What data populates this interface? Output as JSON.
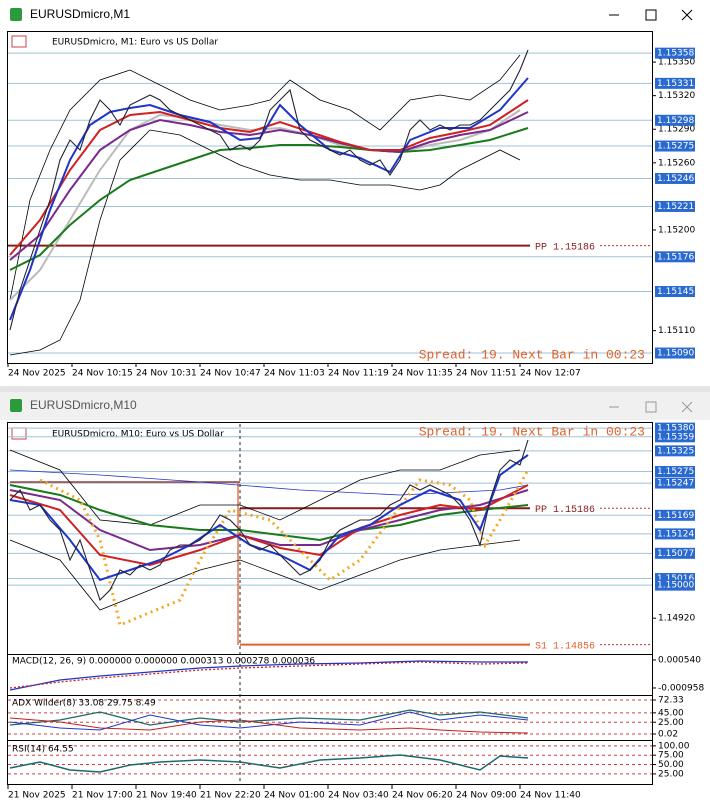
{
  "window1": {
    "title": "EURUSDmicro,M1",
    "chart_label": "EURUSDmicro, M1:  Euro vs US Dollar",
    "spread": "Spread: 19. Next Bar in 00:23",
    "main": {
      "ylim": [
        1.15376,
        1.15082
      ],
      "ticks": [
        {
          "value": 1.1535,
          "label": "1.15350"
        },
        {
          "value": 1.1532,
          "label": "1.15320"
        },
        {
          "value": 1.1529,
          "label": "1.15290"
        },
        {
          "value": 1.1526,
          "label": "1.15260"
        },
        {
          "value": 1.152,
          "label": "1.15200"
        },
        {
          "value": 1.1511,
          "label": "1.15110"
        }
      ],
      "levels": [
        {
          "value": 1.15358,
          "label": "1.15358"
        },
        {
          "value": 1.15331,
          "label": "1.15331"
        },
        {
          "value": 1.15298,
          "label": "1.15298"
        },
        {
          "value": 1.15275,
          "label": "1.15275"
        },
        {
          "value": 1.15246,
          "label": "1.15246"
        },
        {
          "value": 1.15221,
          "label": "1.15221"
        },
        {
          "value": 1.15176,
          "label": "1.15176"
        },
        {
          "value": 1.15145,
          "label": "1.15145"
        },
        {
          "value": 1.1509,
          "label": "1.15090"
        }
      ],
      "pivots": [
        {
          "value": 1.15186,
          "label": "PP 1.15186"
        }
      ]
    },
    "time_labels": [
      "24 Nov 2025",
      "24 Nov 10:15",
      "24 Nov 10:31",
      "24 Nov 10:47",
      "24 Nov 11:03",
      "24 Nov 11:19",
      "24 Nov 11:35",
      "24 Nov 11:51",
      "24 Nov 12:07"
    ]
  },
  "window2": {
    "title": "EURUSDmicro,M10",
    "chart_label": "EURUSDmicro, M10:  Euro vs US Dollar",
    "spread": "Spread: 19. Next Bar in 00:23",
    "main": {
      "ylim": [
        1.1539,
        1.14843
      ],
      "ticks": [
        {
          "value": 1.1492,
          "label": "1.14920"
        }
      ],
      "levels": [
        {
          "value": 1.1538,
          "label": "1.15380"
        },
        {
          "value": 1.15359,
          "label": "1.15359"
        },
        {
          "value": 1.15325,
          "label": "1.15325"
        },
        {
          "value": 1.15275,
          "label": "1.15275"
        },
        {
          "value": 1.15247,
          "label": "1.15247"
        },
        {
          "value": 1.15169,
          "label": "1.15169"
        },
        {
          "value": 1.15124,
          "label": "1.15124"
        },
        {
          "value": 1.15077,
          "label": "1.15077"
        },
        {
          "value": 1.15016,
          "label": "1.15016"
        },
        {
          "value": 1.15,
          "label": "1.15000"
        }
      ],
      "pivots": [
        {
          "value": 1.15186,
          "label": "PP 1.15186"
        },
        {
          "value": 1.14856,
          "label": "S1 1.14856"
        }
      ]
    },
    "macd": {
      "label": "MACD(12, 26, 9) 0.000000 0.000000 0.000313 0.000278 0.000036",
      "ylim": [
        0.00075,
        -0.00128
      ],
      "ticks": [
        {
          "value": 0.00054,
          "label": "0.000540"
        },
        {
          "value": -0.000958,
          "label": "-0.000958"
        }
      ]
    },
    "adx": {
      "label": "ADX Wilder(8) 33.08 29.75 8.49",
      "ylim": [
        80.8,
        -10.6
      ],
      "ticks": [
        {
          "value": 72.33,
          "label": "72.33"
        },
        {
          "value": 45,
          "label": "45.00"
        },
        {
          "value": 25,
          "label": "25.00"
        },
        {
          "value": 0.02,
          "label": "0.02"
        }
      ]
    },
    "rsi": {
      "label": "RSI(14) 64.55",
      "ylim": [
        113,
        -2
      ],
      "ticks": [
        {
          "value": 100,
          "label": "100.00"
        },
        {
          "value": 75,
          "label": "75.00"
        },
        {
          "value": 50,
          "label": "50.00"
        },
        {
          "value": 25,
          "label": "25.00"
        }
      ]
    },
    "time_labels": [
      "21 Nov 2025",
      "21 Nov 17:00",
      "21 Nov 19:40",
      "21 Nov 22:20",
      "24 Nov 01:00",
      "24 Nov 03:40",
      "24 Nov 06:20",
      "24 Nov 09:00",
      "24 Nov 11:40"
    ]
  }
}
